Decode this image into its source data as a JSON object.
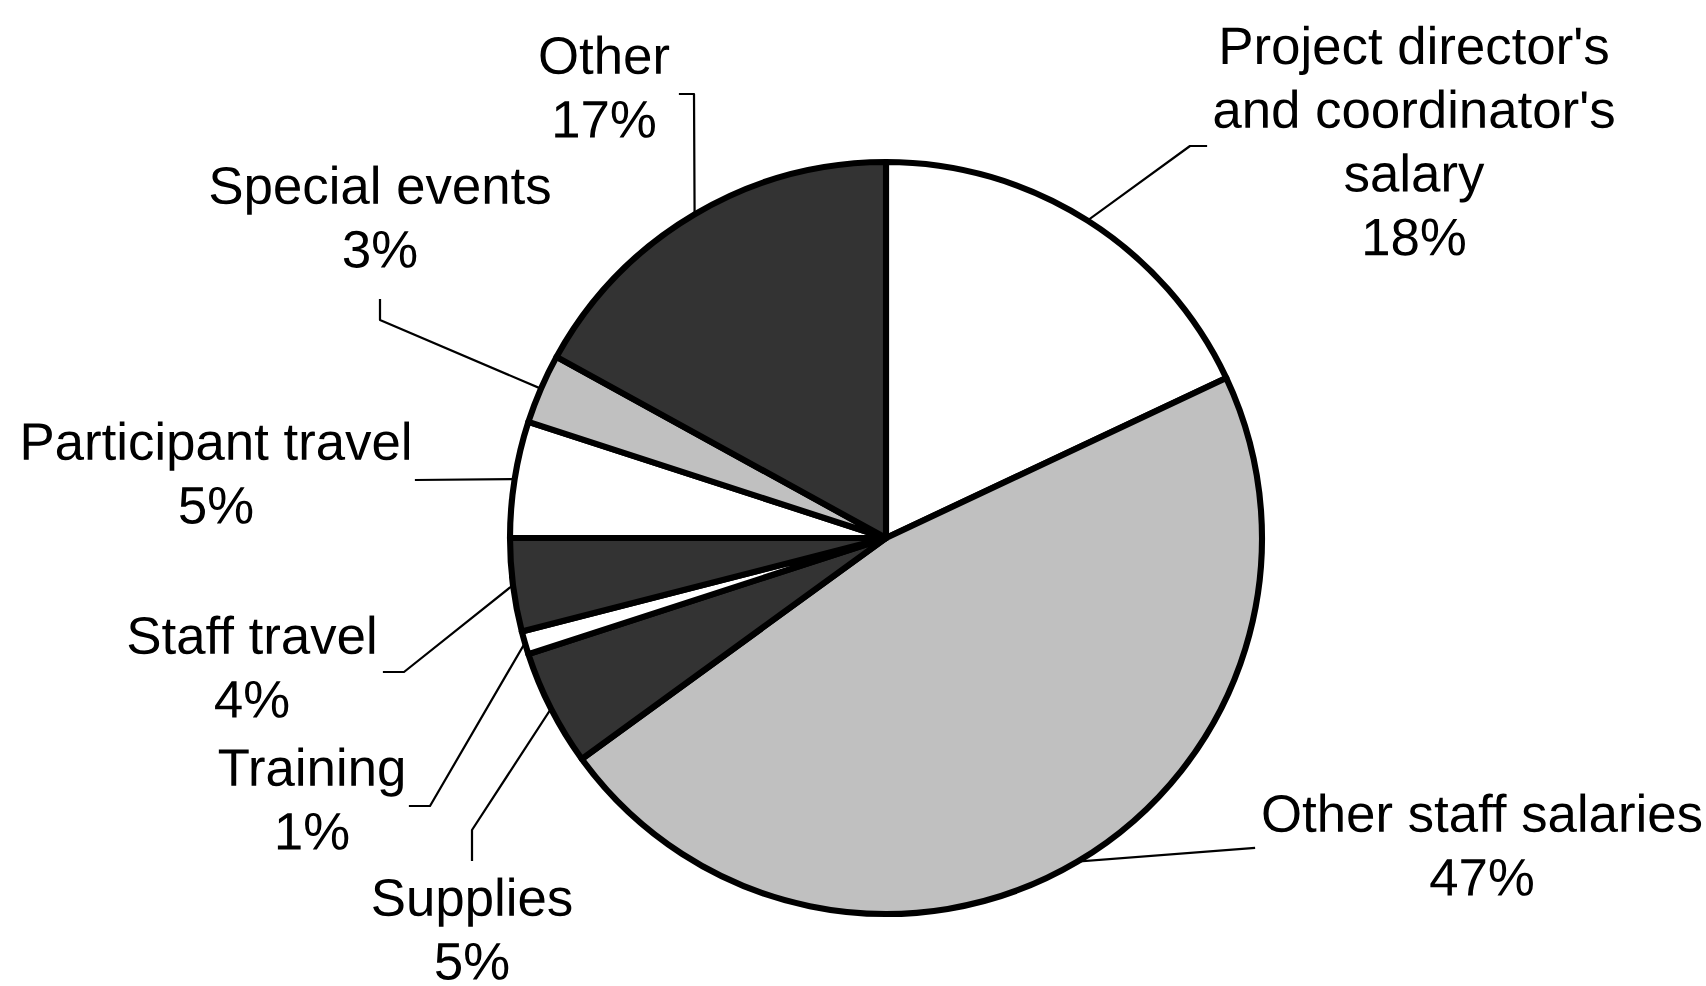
{
  "chart_data": {
    "type": "pie",
    "categories": [
      "Project director's\nand coordinator's\nsalary",
      "Other staff salaries",
      "Supplies",
      "Training",
      "Staff travel",
      "Participant travel",
      "Special events",
      "Other"
    ],
    "values": [
      18,
      47,
      5,
      1,
      4,
      5,
      3,
      17
    ],
    "colors": [
      "#ffffff",
      "#c0c0c0",
      "#333333",
      "#ffffff",
      "#333333",
      "#ffffff",
      "#c0c0c0",
      "#333333"
    ],
    "value_labels": [
      "18%",
      "47%",
      "5%",
      "1%",
      "4%",
      "5%",
      "3%",
      "17%"
    ]
  }
}
